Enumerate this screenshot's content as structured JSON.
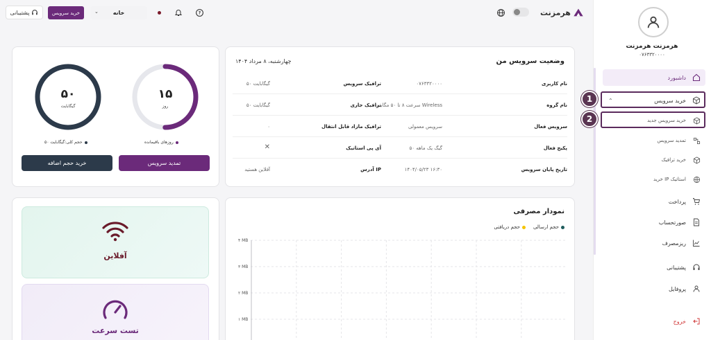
{
  "brand": {
    "name": "هرمزنت"
  },
  "header": {
    "support_label": "پشتیبانی",
    "buy_service_label": "خرید سرویس",
    "home_label": "خانه"
  },
  "user": {
    "name": "هرمزنت هرمزنت",
    "phone": "۰۷۶۳۳۲۰۰۰۰"
  },
  "sidebar": {
    "items": [
      {
        "label": "داشبورد",
        "icon": "home-icon"
      },
      {
        "label": "خرید سرویس",
        "icon": "box-icon"
      },
      {
        "label": "خرید سرویس جدید",
        "icon": "box-icon"
      },
      {
        "label": "تمدید سرویس",
        "icon": "renew-icon"
      },
      {
        "label": "خرید ترافیک",
        "icon": "box-icon"
      },
      {
        "label": "خرید IP استاتیک",
        "icon": "globe-icon"
      },
      {
        "label": "پرداخت",
        "icon": "cart-icon"
      },
      {
        "label": "صورتحساب",
        "icon": "document-icon"
      },
      {
        "label": "ریزمصرف",
        "icon": "chart-icon"
      },
      {
        "label": "پشتیبانی",
        "icon": "headset-icon"
      },
      {
        "label": "پروفایل",
        "icon": "user-icon"
      },
      {
        "label": "خروج",
        "icon": "logout-icon"
      }
    ]
  },
  "annotations": {
    "first": "1",
    "second": "2"
  },
  "status": {
    "title": "وضعیت سرویس من",
    "date": "چهارشنبه، ۸ مرداد ۱۴۰۴",
    "rows": [
      {
        "k1": "نام کاربری",
        "v1": "۰۷۶۳۳۲۰۰۰۰",
        "k2": "ترافیک سرویس",
        "v2": "۵۰ گیگابایت"
      },
      {
        "k1": "نام گروه",
        "v1": "سرعت ۸ تا ۵۰ مگابیت Wireless",
        "k2": "ترافیک جاری",
        "v2": "۵۰ گیگابایت"
      },
      {
        "k1": "سرویس فعال",
        "v1": "سرویس معمولی",
        "k2": "ترافیک مازاد قابل انتقال",
        "v2": "۰"
      },
      {
        "k1": "پکیج فعال",
        "v1": "۵۰ گیگ یک ماهه",
        "k2": "آی پی استاتیک",
        "v2": "✕"
      },
      {
        "k1": "تاریخ پایان سرویس",
        "v1": "۱۴۰۴/۰۵/۲۳ ۱۶:۳۰",
        "k2": "آدرس IP",
        "v2": "آفلاین هستید"
      }
    ]
  },
  "gauges": {
    "days": {
      "value": "۱۵",
      "unit": "روز",
      "legend": "روزهای باقیمانده",
      "fraction": 0.5,
      "color": "#6b2a7a"
    },
    "volume": {
      "value": "۵۰",
      "unit": "گیگابایت",
      "legend": "حجم کلی:گیگابایت ۵۰",
      "fraction": 1.0,
      "color": "#2c3a4a"
    },
    "renew_label": "تمدید سرویس",
    "buy_extra_label": "خرید حجم اضافه"
  },
  "usage": {
    "title": "نمودار مصرفی",
    "legend_send": "حجم ارسالی",
    "legend_receive": "حجم دریافتی",
    "send_color": "#1f5c5c",
    "receive_color": "#f5c400",
    "yticks": [
      "۴ MB",
      "۳ MB",
      "۲ MB",
      "۱ MB"
    ]
  },
  "tiles": {
    "offline": "آفلاین",
    "speedtest": "تست سرعت"
  }
}
